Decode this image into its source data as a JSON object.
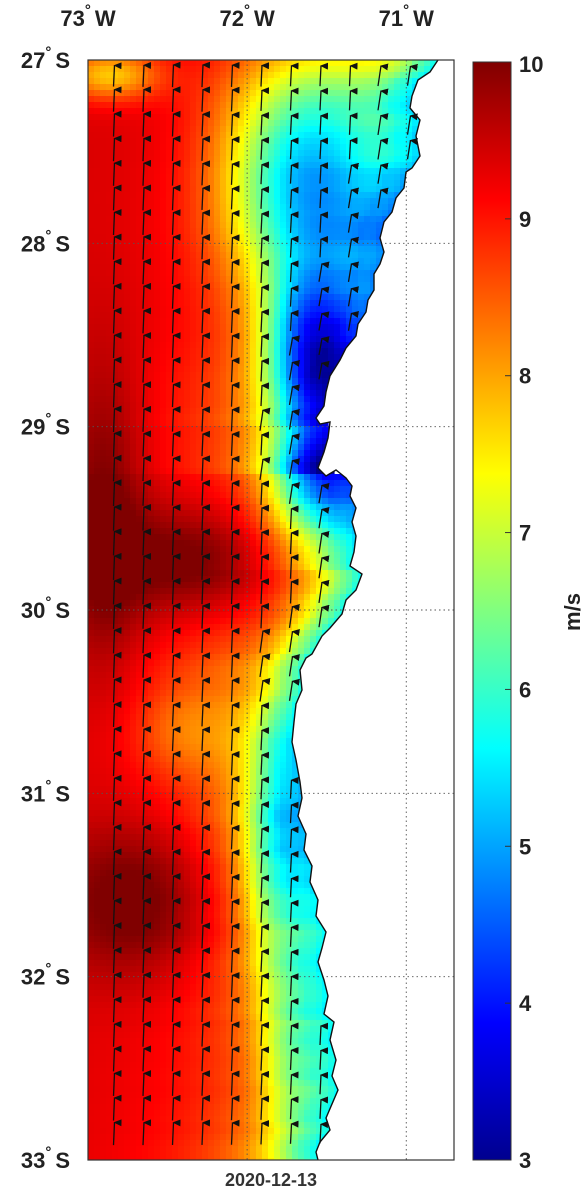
{
  "map": {
    "date_label": "2020-12-13",
    "lon_ticks": [
      {
        "value": -73,
        "label": "73° W"
      },
      {
        "value": -72,
        "label": "72° W"
      },
      {
        "value": -71,
        "label": "71° W"
      }
    ],
    "lat_ticks": [
      {
        "value": -27,
        "label": "27° S"
      },
      {
        "value": -28,
        "label": "28° S"
      },
      {
        "value": -29,
        "label": "29° S"
      },
      {
        "value": -30,
        "label": "30° S"
      },
      {
        "value": -31,
        "label": "31° S"
      },
      {
        "value": -32,
        "label": "32° S"
      },
      {
        "value": -33,
        "label": "33° S"
      }
    ],
    "lon_range": [
      -73,
      -70.7
    ],
    "lat_range": [
      -33,
      -27
    ],
    "field": "wind speed",
    "arrow_direction": "northward",
    "land_color": "#ffffff",
    "grid": true
  },
  "colorbar": {
    "label": "m/s",
    "min": 3,
    "max": 10,
    "ticks": [
      "3",
      "4",
      "5",
      "6",
      "7",
      "8",
      "9",
      "10"
    ],
    "colormap": "jet"
  }
}
